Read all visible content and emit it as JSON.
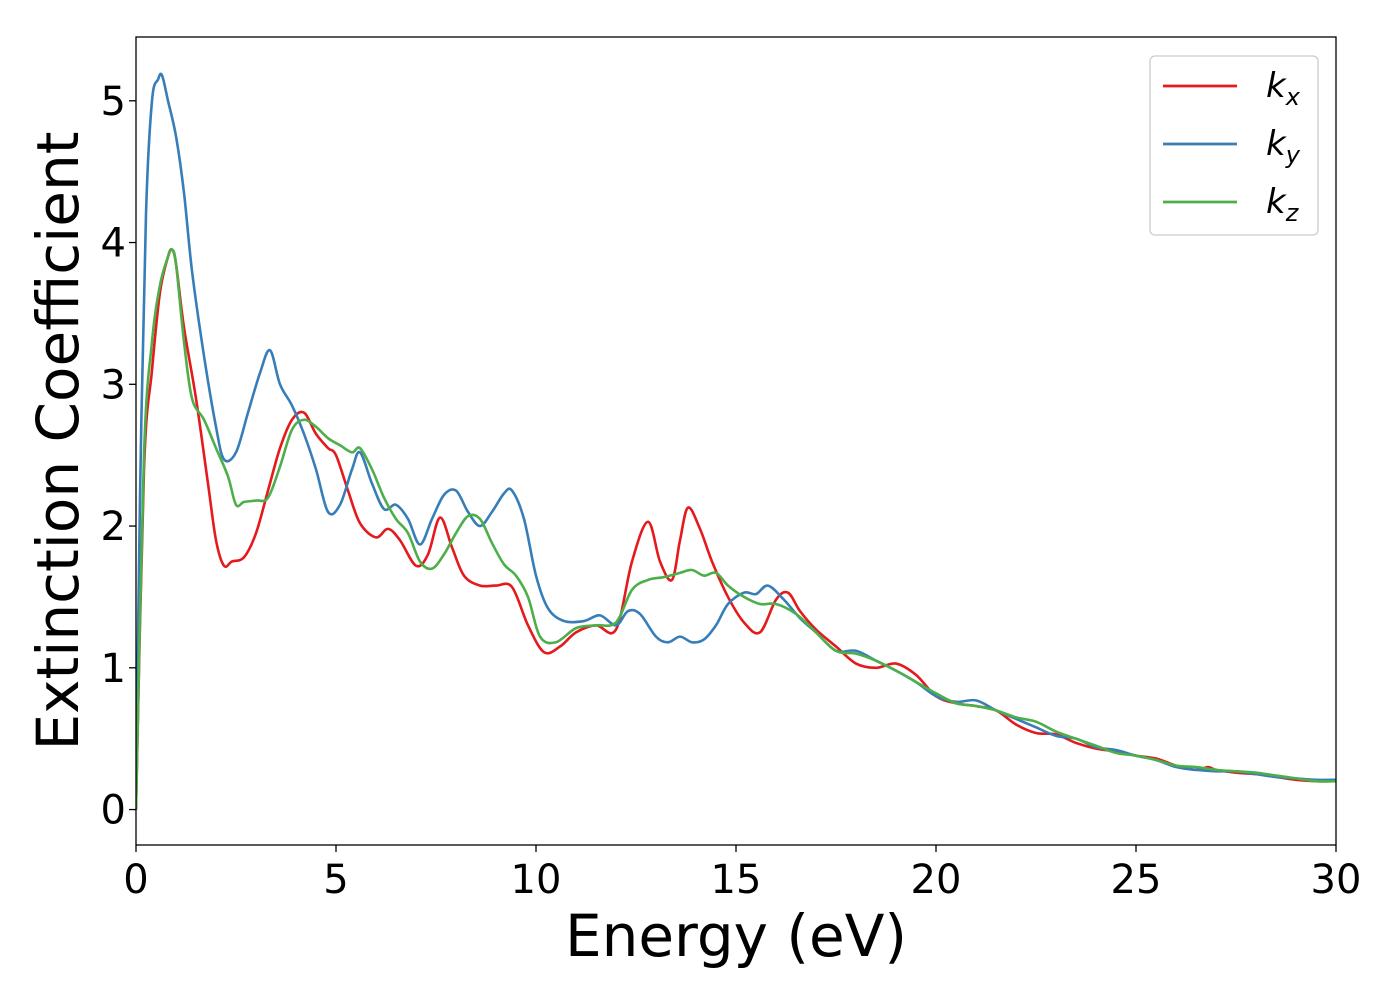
{
  "chart_data": {
    "type": "line",
    "xlabel": "Energy (eV)",
    "ylabel": "Extinction Coefficient",
    "xlim": [
      0,
      30
    ],
    "ylim": [
      -0.25,
      5.45
    ],
    "xticks": [
      0,
      5,
      10,
      15,
      20,
      25,
      30
    ],
    "yticks": [
      0,
      1,
      2,
      3,
      4,
      5
    ],
    "xtick_labels": [
      "0",
      "5",
      "10",
      "15",
      "20",
      "25",
      "30"
    ],
    "ytick_labels": [
      "0",
      "1",
      "2",
      "3",
      "4",
      "5"
    ],
    "grid": false,
    "legend_position": "top-right",
    "series": [
      {
        "name": "k_x",
        "label_main": "k",
        "label_sub": "x",
        "color": "#e41a1c",
        "x": [
          0,
          0.2,
          0.4,
          0.6,
          0.8,
          0.9,
          1.0,
          1.2,
          1.5,
          1.8,
          2.0,
          2.2,
          2.4,
          2.7,
          3.0,
          3.3,
          3.6,
          3.9,
          4.2,
          4.5,
          4.8,
          5.0,
          5.3,
          5.6,
          6.0,
          6.3,
          6.6,
          7.0,
          7.3,
          7.6,
          7.9,
          8.2,
          8.6,
          9.0,
          9.4,
          9.8,
          10.2,
          10.6,
          11.0,
          11.5,
          12.0,
          12.4,
          12.8,
          13.1,
          13.4,
          13.6,
          13.8,
          14.1,
          14.4,
          14.8,
          15.2,
          15.6,
          16.0,
          16.3,
          16.6,
          17.0,
          17.5,
          18.0,
          18.5,
          19.0,
          19.5,
          20.0,
          20.5,
          21.0,
          21.5,
          22.0,
          22.5,
          23.0,
          23.5,
          24.0,
          24.5,
          25.0,
          25.5,
          26.0,
          26.5,
          26.8,
          27.0,
          27.5,
          28.0,
          28.5,
          29.0,
          29.5,
          30.0
        ],
        "y": [
          0,
          2.4,
          3.1,
          3.65,
          3.9,
          3.95,
          3.85,
          3.4,
          2.9,
          2.3,
          1.9,
          1.72,
          1.75,
          1.78,
          1.95,
          2.25,
          2.55,
          2.75,
          2.8,
          2.65,
          2.55,
          2.5,
          2.25,
          2.02,
          1.92,
          1.98,
          1.9,
          1.72,
          1.8,
          2.06,
          1.85,
          1.65,
          1.58,
          1.58,
          1.57,
          1.3,
          1.11,
          1.15,
          1.25,
          1.3,
          1.27,
          1.75,
          2.03,
          1.75,
          1.62,
          1.9,
          2.13,
          1.98,
          1.75,
          1.5,
          1.32,
          1.25,
          1.48,
          1.53,
          1.4,
          1.27,
          1.15,
          1.03,
          1.0,
          1.03,
          0.95,
          0.8,
          0.75,
          0.73,
          0.7,
          0.6,
          0.54,
          0.53,
          0.47,
          0.43,
          0.41,
          0.38,
          0.36,
          0.31,
          0.28,
          0.3,
          0.28,
          0.26,
          0.25,
          0.23,
          0.21,
          0.2,
          0.2
        ]
      },
      {
        "name": "k_y",
        "label_main": "k",
        "label_sub": "y",
        "color": "#377eb8",
        "x": [
          0,
          0.1,
          0.25,
          0.4,
          0.55,
          0.65,
          0.8,
          1.0,
          1.2,
          1.4,
          1.7,
          2.0,
          2.2,
          2.5,
          2.8,
          3.1,
          3.35,
          3.6,
          3.9,
          4.2,
          4.5,
          4.8,
          5.1,
          5.4,
          5.6,
          5.9,
          6.2,
          6.5,
          6.8,
          7.1,
          7.4,
          7.7,
          8.0,
          8.3,
          8.6,
          8.9,
          9.2,
          9.4,
          9.7,
          10.0,
          10.3,
          10.7,
          11.2,
          11.6,
          12.0,
          12.3,
          12.6,
          13.0,
          13.3,
          13.6,
          13.9,
          14.2,
          14.5,
          14.8,
          15.2,
          15.5,
          15.8,
          16.2,
          16.6,
          17.0,
          17.5,
          18.0,
          18.5,
          19.0,
          19.5,
          20.0,
          20.5,
          21.0,
          21.5,
          22.0,
          22.5,
          23.0,
          23.5,
          24.0,
          24.5,
          25.0,
          25.5,
          26.0,
          26.5,
          27.0,
          27.5,
          28.0,
          28.5,
          29.0,
          29.5,
          30.0
        ],
        "y": [
          0,
          2.2,
          4.2,
          5.0,
          5.15,
          5.18,
          5.0,
          4.75,
          4.35,
          3.8,
          3.2,
          2.7,
          2.47,
          2.52,
          2.8,
          3.08,
          3.24,
          3.0,
          2.85,
          2.65,
          2.4,
          2.1,
          2.15,
          2.4,
          2.52,
          2.3,
          2.12,
          2.15,
          2.05,
          1.87,
          2.05,
          2.22,
          2.25,
          2.1,
          2.0,
          2.1,
          2.23,
          2.25,
          2.05,
          1.65,
          1.42,
          1.33,
          1.33,
          1.37,
          1.3,
          1.4,
          1.38,
          1.22,
          1.18,
          1.22,
          1.18,
          1.2,
          1.3,
          1.45,
          1.53,
          1.52,
          1.58,
          1.48,
          1.35,
          1.25,
          1.12,
          1.12,
          1.05,
          0.98,
          0.9,
          0.8,
          0.76,
          0.77,
          0.7,
          0.64,
          0.58,
          0.52,
          0.5,
          0.44,
          0.42,
          0.38,
          0.35,
          0.3,
          0.28,
          0.27,
          0.27,
          0.25,
          0.23,
          0.22,
          0.21,
          0.21
        ]
      },
      {
        "name": "k_z",
        "label_main": "k",
        "label_sub": "z",
        "color": "#4daf4a",
        "x": [
          0,
          0.2,
          0.4,
          0.6,
          0.8,
          0.9,
          1.0,
          1.2,
          1.4,
          1.7,
          2.0,
          2.3,
          2.5,
          2.7,
          3.0,
          3.3,
          3.6,
          3.9,
          4.2,
          4.5,
          4.8,
          5.1,
          5.4,
          5.6,
          5.9,
          6.2,
          6.5,
          6.8,
          7.1,
          7.4,
          7.7,
          8.0,
          8.3,
          8.6,
          8.9,
          9.2,
          9.5,
          9.8,
          10.1,
          10.5,
          11.0,
          11.5,
          12.0,
          12.4,
          12.8,
          13.2,
          13.6,
          13.9,
          14.2,
          14.5,
          14.8,
          15.2,
          15.6,
          16.0,
          16.5,
          17.0,
          17.5,
          18.0,
          18.5,
          19.0,
          19.5,
          20.0,
          20.5,
          21.0,
          21.5,
          22.0,
          22.5,
          23.0,
          23.5,
          24.0,
          24.5,
          25.0,
          25.5,
          26.0,
          26.5,
          27.0,
          27.5,
          28.0,
          28.5,
          29.0,
          29.5,
          30.0
        ],
        "y": [
          0,
          2.5,
          3.3,
          3.7,
          3.9,
          3.95,
          3.85,
          3.3,
          2.9,
          2.75,
          2.55,
          2.35,
          2.15,
          2.17,
          2.18,
          2.2,
          2.42,
          2.68,
          2.75,
          2.7,
          2.62,
          2.57,
          2.52,
          2.55,
          2.4,
          2.2,
          2.05,
          1.95,
          1.75,
          1.7,
          1.8,
          1.95,
          2.07,
          2.05,
          1.88,
          1.73,
          1.65,
          1.5,
          1.22,
          1.18,
          1.28,
          1.3,
          1.32,
          1.55,
          1.62,
          1.64,
          1.67,
          1.69,
          1.65,
          1.67,
          1.58,
          1.5,
          1.45,
          1.45,
          1.38,
          1.25,
          1.12,
          1.1,
          1.05,
          0.98,
          0.9,
          0.82,
          0.75,
          0.73,
          0.7,
          0.65,
          0.62,
          0.55,
          0.5,
          0.45,
          0.4,
          0.38,
          0.35,
          0.31,
          0.3,
          0.28,
          0.27,
          0.26,
          0.24,
          0.22,
          0.2,
          0.2
        ]
      }
    ]
  }
}
